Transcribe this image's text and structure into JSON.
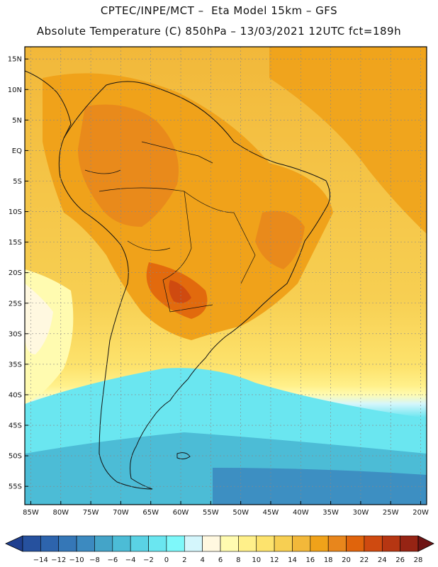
{
  "header": {
    "line1": "CPTEC/INPE/MCT –  Eta Model 15km – GFS",
    "line2": "Absolute Temperature (C) 850hPa – 13/03/2021 12UTC fct=189h"
  },
  "map": {
    "lat_labels": [
      "15N",
      "10N",
      "5N",
      "EQ",
      "5S",
      "10S",
      "15S",
      "20S",
      "25S",
      "30S",
      "35S",
      "40S",
      "45S",
      "50S",
      "55S"
    ],
    "lat_values": [
      15,
      10,
      5,
      0,
      -5,
      -10,
      -15,
      -20,
      -25,
      -30,
      -35,
      -40,
      -45,
      -50,
      -55
    ],
    "lon_labels": [
      "85W",
      "80W",
      "75W",
      "70W",
      "65W",
      "60W",
      "55W",
      "50W",
      "45W",
      "40W",
      "35W",
      "30W",
      "25W",
      "20W"
    ],
    "lon_values": [
      -85,
      -80,
      -75,
      -70,
      -65,
      -60,
      -55,
      -50,
      -45,
      -40,
      -35,
      -30,
      -25,
      -20
    ],
    "extent": {
      "lon_min": -86,
      "lon_max": -19,
      "lat_min": -58,
      "lat_max": 17
    }
  },
  "colorbar": {
    "labels": [
      "-14",
      "-12",
      "-10",
      "-8",
      "-6",
      "-4",
      "-2",
      "0",
      "2",
      "4",
      "6",
      "8",
      "10",
      "12",
      "14",
      "16",
      "18",
      "20",
      "22",
      "24",
      "26",
      "28"
    ],
    "colors": [
      "#1f3f8f",
      "#26519e",
      "#2d64ad",
      "#3577b7",
      "#3c8ac0",
      "#44a4c8",
      "#4cbcd6",
      "#5ad2e4",
      "#6ae6f0",
      "#7ef8fa",
      "#d4f6fc",
      "#fff8e0",
      "#fffbb0",
      "#fff08a",
      "#fde36d",
      "#f7cf52",
      "#f2b83a",
      "#f0a21a",
      "#e8861c",
      "#e0640c",
      "#cf4a10",
      "#b63612",
      "#962414",
      "#6e1414"
    ]
  }
}
